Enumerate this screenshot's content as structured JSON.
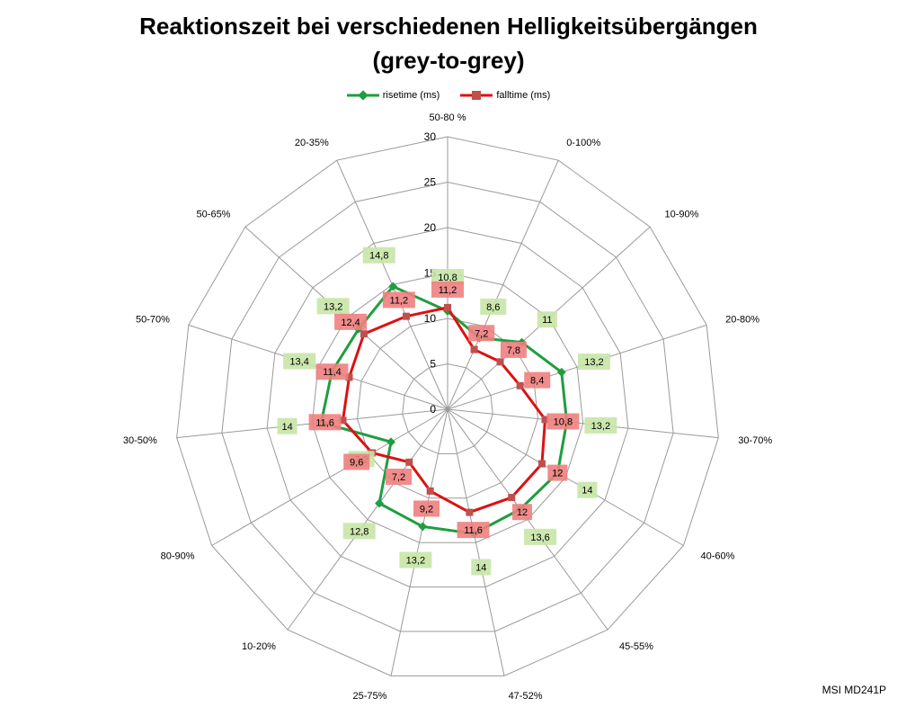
{
  "chart_data": {
    "type": "radar",
    "title": "Reaktionszeit bei verschiedenen Helligkeitsübergängen\n(grey-to-grey)",
    "categories": [
      "50-80 %",
      "0-100%",
      "10-90%",
      "20-80%",
      "30-70%",
      "40-60%",
      "45-55%",
      "47-52%",
      "25-75%",
      "10-20%",
      "80-90%",
      "30-50%",
      "50-70%",
      "50-65%",
      "20-35%"
    ],
    "rlim": [
      0,
      30
    ],
    "ticks": [
      0,
      5,
      10,
      15,
      20,
      25,
      30
    ],
    "tick_labels": [
      "0",
      "5",
      "10",
      "15",
      "20",
      "25",
      "30"
    ],
    "series": [
      {
        "name": "risetime (ms)",
        "color": "#1e9e3e",
        "label_bg": "#c7e6a6",
        "values": [
          10.8,
          8.6,
          11,
          13.2,
          13.2,
          14,
          13.6,
          14,
          13.2,
          12.8,
          7.2,
          14,
          13.4,
          13.2,
          14.8
        ],
        "labels": [
          "10,8",
          "8,6",
          "11",
          "13,2",
          "13,2",
          "14",
          "13,6",
          "14",
          "13,2",
          "12,8",
          "7,2",
          "14",
          "13,4",
          "13,2",
          "14,8"
        ]
      },
      {
        "name": "falltime (ms)",
        "color": "#dd1111",
        "label_bg": "#f08080",
        "values": [
          11.2,
          7.2,
          7.8,
          8.4,
          10.8,
          12,
          12,
          11.6,
          9.2,
          7.2,
          9.6,
          11.6,
          11.4,
          12.4,
          11.2
        ],
        "labels": [
          "11,2",
          "7,2",
          "7,8",
          "8,4",
          "10,8",
          "12",
          "12",
          "11,6",
          "9,2",
          "7,2",
          "9,6",
          "11,6",
          "11,4",
          "12,4",
          "11,2"
        ]
      }
    ],
    "legend_position": "top",
    "grid": true
  },
  "footer": {
    "brand": "MSI MD241P"
  }
}
